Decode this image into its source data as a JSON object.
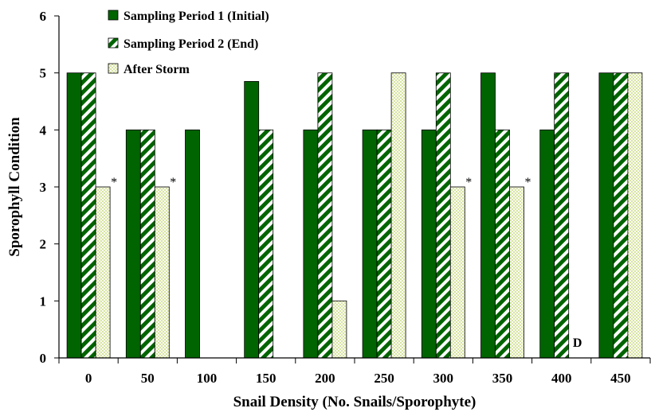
{
  "chart_data": {
    "type": "bar",
    "xlabel": "Snail Density (No. Snails/Sporophyte)",
    "ylabel": "Sporophyll Condition",
    "ylim": [
      0,
      6
    ],
    "yticks": [
      "0",
      "1",
      "2",
      "3",
      "4",
      "5",
      "6"
    ],
    "categories": [
      "0",
      "50",
      "100",
      "150",
      "200",
      "250",
      "300",
      "350",
      "400",
      "450"
    ],
    "legend_position": "top-left",
    "grid": false,
    "series": [
      {
        "name": "Sampling Period 1 (Initial)",
        "pattern": "solid",
        "color": "#006400",
        "values": [
          5,
          4,
          4,
          4.85,
          4,
          4,
          4,
          5,
          4,
          5
        ]
      },
      {
        "name": "Sampling Period 2 (End)",
        "pattern": "diagonal-stripes",
        "color": "#006400",
        "values": [
          5,
          4,
          null,
          4,
          5,
          4,
          5,
          4,
          5,
          5
        ]
      },
      {
        "name": "After Storm",
        "pattern": "dots",
        "color": "#cfe08a",
        "values": [
          3,
          3,
          null,
          null,
          1,
          5,
          3,
          3,
          null,
          5
        ]
      }
    ],
    "annotations": [
      {
        "category": "0",
        "series": 2,
        "text": "*"
      },
      {
        "category": "50",
        "series": 2,
        "text": "*"
      },
      {
        "category": "300",
        "series": 2,
        "text": "*"
      },
      {
        "category": "350",
        "series": 2,
        "text": "*"
      },
      {
        "category": "400",
        "series": 2,
        "text": "D"
      }
    ]
  }
}
